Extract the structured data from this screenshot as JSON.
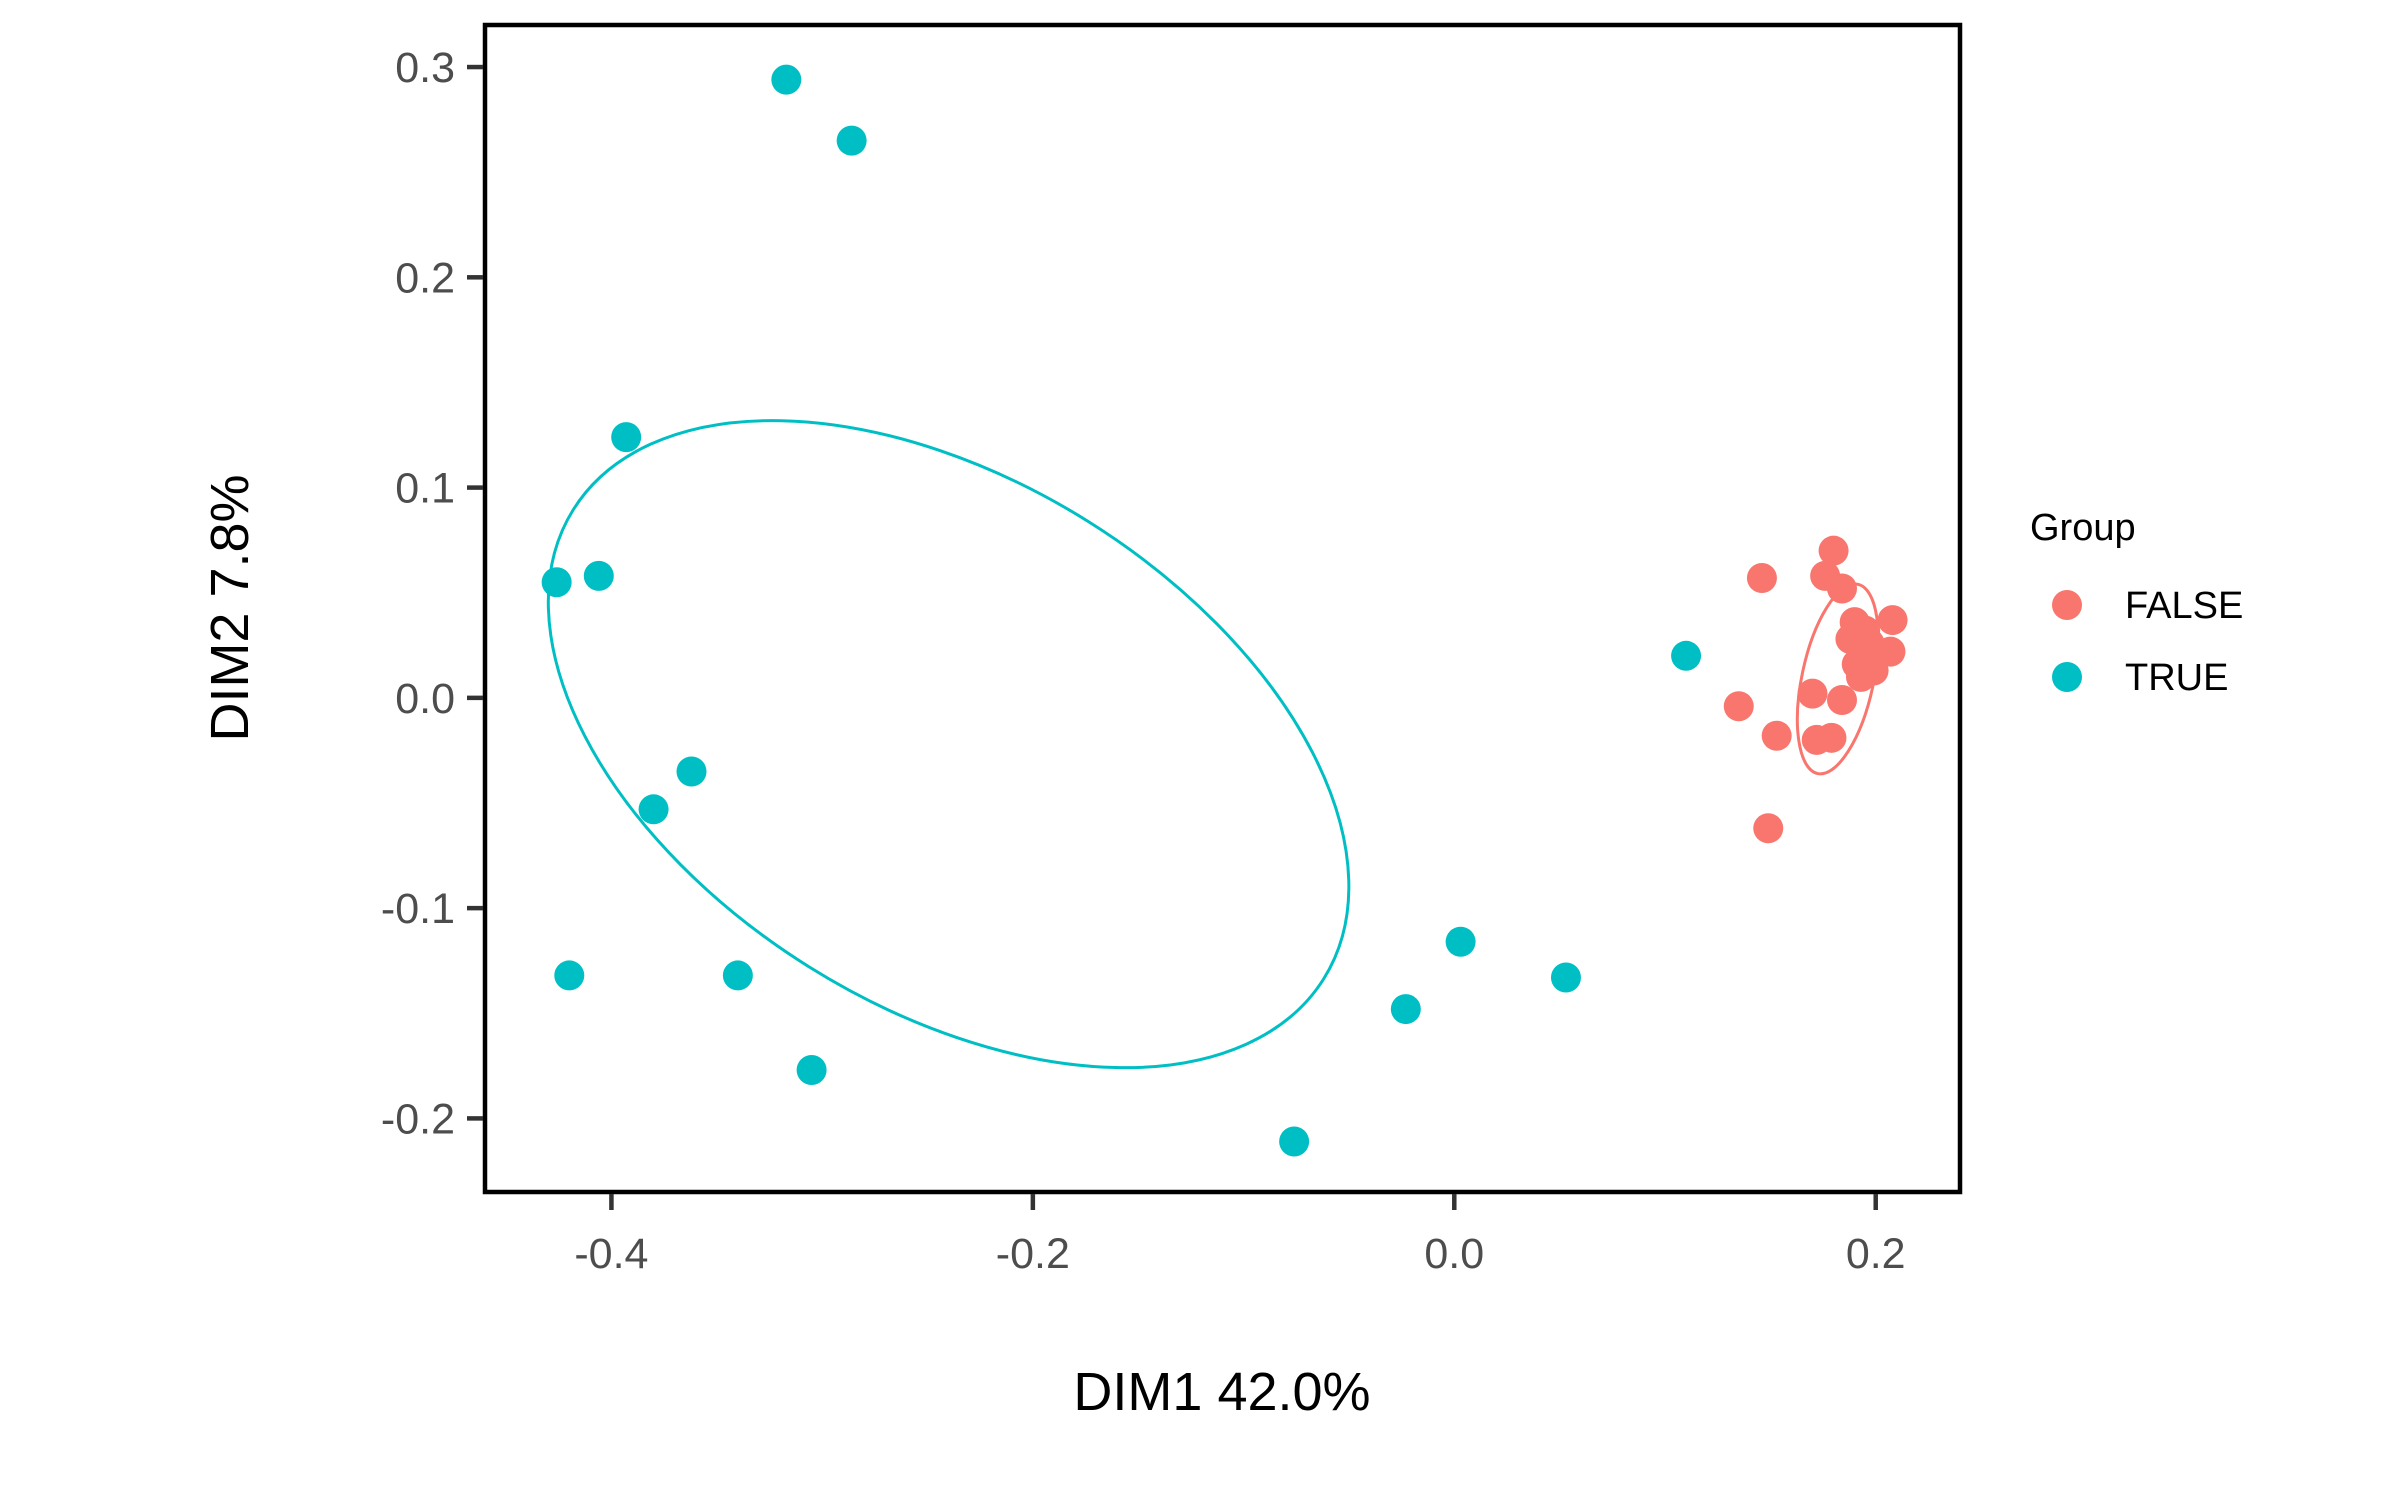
{
  "chart_data": {
    "type": "scatter",
    "title": "",
    "xlabel": "DIM1 42.0%",
    "ylabel": "DIM2 7.8%",
    "xlim": [
      -0.46,
      0.24
    ],
    "ylim": [
      -0.235,
      0.32
    ],
    "x_ticks": [
      -0.4,
      -0.2,
      0.0,
      0.2
    ],
    "x_tick_labels": [
      "-0.4",
      "-0.2",
      "0.0",
      "0.2"
    ],
    "y_ticks": [
      -0.2,
      -0.1,
      0.0,
      0.1,
      0.2,
      0.3
    ],
    "y_tick_labels": [
      "-0.2",
      "-0.1",
      "0.0",
      "0.1",
      "0.2",
      "0.3"
    ],
    "grid": false,
    "legend": {
      "title": "Group",
      "placement": "right"
    },
    "series": [
      {
        "name": "FALSE",
        "color": "#F8766D",
        "points": [
          {
            "x": 0.18,
            "y": 0.07
          },
          {
            "x": 0.146,
            "y": 0.057
          },
          {
            "x": 0.176,
            "y": 0.058
          },
          {
            "x": 0.184,
            "y": 0.052
          },
          {
            "x": 0.208,
            "y": 0.037
          },
          {
            "x": 0.19,
            "y": 0.036
          },
          {
            "x": 0.195,
            "y": 0.032
          },
          {
            "x": 0.188,
            "y": 0.028
          },
          {
            "x": 0.197,
            "y": 0.026
          },
          {
            "x": 0.207,
            "y": 0.022
          },
          {
            "x": 0.191,
            "y": 0.016
          },
          {
            "x": 0.199,
            "y": 0.013
          },
          {
            "x": 0.193,
            "y": 0.01
          },
          {
            "x": 0.17,
            "y": 0.002
          },
          {
            "x": 0.184,
            "y": -0.001
          },
          {
            "x": 0.135,
            "y": -0.004
          },
          {
            "x": 0.153,
            "y": -0.018
          },
          {
            "x": 0.172,
            "y": -0.02
          },
          {
            "x": 0.179,
            "y": -0.019
          },
          {
            "x": 0.149,
            "y": -0.062
          }
        ],
        "ellipse": {
          "cx": 0.182,
          "cy": 0.009,
          "rx": 0.017,
          "ry": 0.046,
          "angle": 12
        }
      },
      {
        "name": "TRUE",
        "color": "#00BFC4",
        "points": [
          {
            "x": -0.317,
            "y": 0.294
          },
          {
            "x": -0.286,
            "y": 0.265
          },
          {
            "x": -0.393,
            "y": 0.124
          },
          {
            "x": -0.426,
            "y": 0.055
          },
          {
            "x": -0.406,
            "y": 0.058
          },
          {
            "x": -0.362,
            "y": -0.035
          },
          {
            "x": -0.38,
            "y": -0.053
          },
          {
            "x": -0.42,
            "y": -0.132
          },
          {
            "x": -0.34,
            "y": -0.132
          },
          {
            "x": -0.305,
            "y": -0.177
          },
          {
            "x": 0.11,
            "y": 0.02
          },
          {
            "x": 0.003,
            "y": -0.116
          },
          {
            "x": 0.053,
            "y": -0.133
          },
          {
            "x": -0.023,
            "y": -0.148
          },
          {
            "x": -0.076,
            "y": -0.211
          }
        ],
        "ellipse": {
          "cx": -0.24,
          "cy": -0.022,
          "rx": 0.21,
          "ry": 0.125,
          "angle": 32
        }
      }
    ]
  }
}
